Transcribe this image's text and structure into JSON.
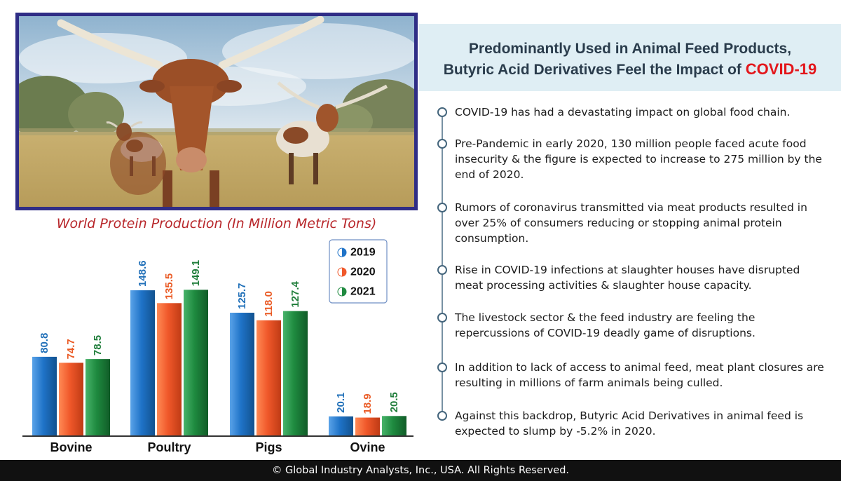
{
  "header": {
    "line1": "Predominantly Used in Animal Feed Products,",
    "line2_prefix": "Butyric Acid Derivatives Feel the Impact of ",
    "line2_highlight": "COVID-19"
  },
  "bullets": [
    "COVID-19 has had a devastating impact on global food chain.",
    "Pre-Pandemic in early 2020, 130 million people faced acute food insecurity & the figure is expected to increase to 275 million by the end of 2020.",
    "Rumors of coronavirus transmitted via meat products resulted in over 25% of consumers reducing or stopping animal protein consumption.",
    "Rise in COVID-19 infections at slaughter houses have disrupted meat processing activities & slaughter house capacity.",
    "The livestock sector & the feed industry are feeling the repercussions of COVID-19 deadly game of disruptions.",
    "In addition to lack of access to animal feed, meat plant closures are resulting in millions of farm animals being culled.",
    "Against this backdrop, Butyric Acid Derivatives in animal feed is expected to slump by -5.2% in 2020."
  ],
  "footer": "© Global Industry Analysts, Inc., USA. All Rights Reserved.",
  "colors": {
    "frame": "#2f2d86",
    "header_band": "#dfeef4",
    "highlight": "#e3161b",
    "title_red": "#b8272b"
  },
  "chart_data": {
    "type": "bar",
    "title": "World Protein Production (In Million Metric Tons)",
    "categories": [
      "Bovine",
      "Poultry",
      "Pigs",
      "Ovine"
    ],
    "series": [
      {
        "name": "2019",
        "values": [
          80.8,
          148.6,
          125.7,
          20.1
        ],
        "color": "#1f73c8",
        "label_color": "#1f6fb8"
      },
      {
        "name": "2020",
        "values": [
          74.7,
          135.5,
          118.0,
          18.9
        ],
        "color": "#f0582a",
        "label_color": "#ea5a24"
      },
      {
        "name": "2021",
        "values": [
          78.5,
          149.1,
          127.4,
          20.5
        ],
        "color": "#1e8a3f",
        "label_color": "#1f7d3a"
      }
    ],
    "value_labels": [
      [
        "80.8",
        "148.6",
        "125.7",
        "20.1"
      ],
      [
        "74.7",
        "135.5",
        "118.0",
        "18.9"
      ],
      [
        "78.5",
        "149.1",
        "127.4",
        "20.5"
      ]
    ],
    "ylim": [
      0,
      160
    ],
    "legend": "top-right",
    "grid": false
  }
}
